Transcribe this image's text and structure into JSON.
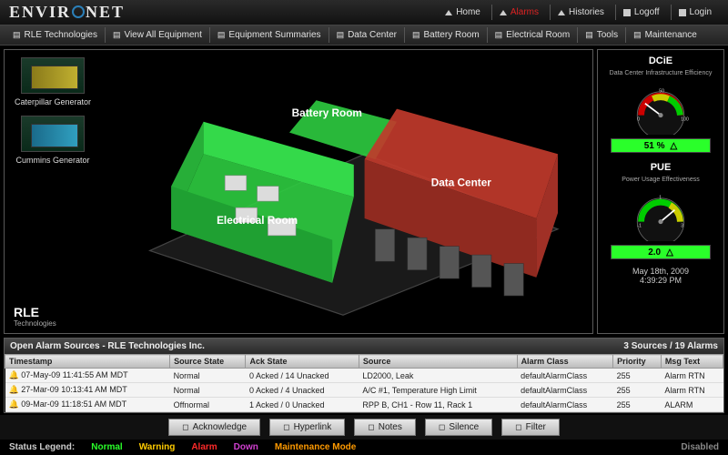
{
  "brand": "ENVIRONET",
  "topnav": [
    {
      "label": "Home",
      "name": "home"
    },
    {
      "label": "Alarms",
      "name": "alarms",
      "alarm": true
    },
    {
      "label": "Histories",
      "name": "histories"
    },
    {
      "label": "Logoff",
      "name": "logoff"
    },
    {
      "label": "Login",
      "name": "login"
    }
  ],
  "toolbar": [
    "RLE Technologies",
    "View All Equipment",
    "Equipment Summaries",
    "Data Center",
    "Battery Room",
    "Electrical Room",
    "Tools",
    "Maintenance"
  ],
  "thumbs": [
    {
      "label": "Caterpillar Generator",
      "style": "yellow"
    },
    {
      "label": "Cummins Generator",
      "style": "blue"
    }
  ],
  "rooms": {
    "battery": "Battery Room",
    "electrical": "Electrical Room",
    "data": "Data Center"
  },
  "rle": {
    "title": "RLE",
    "sub": "Technologies"
  },
  "gauges": {
    "dcie": {
      "title": "DCiE",
      "sub": "Data Center Infrastructure Efficiency",
      "value": "51 %",
      "ticks": [
        "0",
        "10",
        "20",
        "30",
        "40",
        "50",
        "60",
        "70",
        "80",
        "90",
        "100"
      ],
      "needle_angle": -80
    },
    "pue": {
      "title": "PUE",
      "sub": "Power Usage Effectiveness",
      "value": "2.0",
      "ticks": [
        "-1",
        "0",
        "1",
        "2",
        "3"
      ],
      "needle_angle": 70
    }
  },
  "datetime": {
    "date": "May 18th, 2009",
    "time": "4:39:29 PM"
  },
  "alarmHeader": {
    "title": "Open Alarm Sources - RLE Technologies Inc.",
    "right": "3 Sources / 19 Alarms"
  },
  "alarmCols": [
    "Timestamp",
    "Source State",
    "Ack State",
    "Source",
    "Alarm Class",
    "Priority",
    "Msg Text"
  ],
  "alarmRows": [
    [
      "07-May-09 11:41:55 AM MDT",
      "Normal",
      "0 Acked / 14 Unacked",
      "LD2000, Leak",
      "defaultAlarmClass",
      "255",
      "Alarm RTN"
    ],
    [
      "27-Mar-09 10:13:41 AM MDT",
      "Normal",
      "0 Acked / 4 Unacked",
      "A/C #1, Temperature High Limit",
      "defaultAlarmClass",
      "255",
      "Alarm RTN"
    ],
    [
      "09-Mar-09 11:18:51 AM MDT",
      "Offnormal",
      "1 Acked / 0 Unacked",
      "RPP B, CH1 - Row 11, Rack 1",
      "defaultAlarmClass",
      "255",
      "ALARM"
    ]
  ],
  "actions": [
    "Acknowledge",
    "Hyperlink",
    "Notes",
    "Silence",
    "Filter"
  ],
  "legend": {
    "label": "Status Legend:",
    "items": [
      {
        "text": "Normal",
        "cls": "normal"
      },
      {
        "text": "Warning",
        "cls": "warning"
      },
      {
        "text": "Alarm",
        "cls": "alarm"
      },
      {
        "text": "Down",
        "cls": "down"
      },
      {
        "text": "Maintenance Mode",
        "cls": "maint"
      }
    ],
    "disabled": "Disabled"
  },
  "colors": {
    "green": "#2ecc40",
    "red": "#c0392b",
    "floor": "#2a2a2a"
  }
}
